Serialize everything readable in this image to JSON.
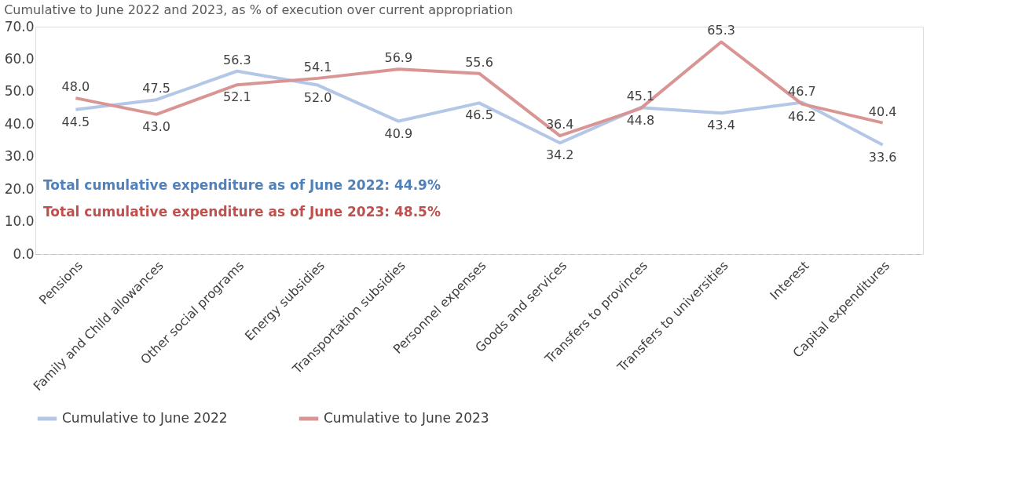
{
  "chart_data": {
    "type": "line",
    "title": "Cumulative to June 2022 and 2023, as % of execution over current appropriation",
    "categories": [
      "Pensions",
      "Family and Child allowances",
      "Other social programs",
      "Energy subsidies",
      "Transportation subsidies",
      "Personnel expenses",
      "Goods and services",
      "Transfers to provinces",
      "Transfers to universities",
      "Interest",
      "Capital expenditures"
    ],
    "series": [
      {
        "name": "Cumulative to June 2022",
        "color": "#b4c7e7",
        "values": [
          44.5,
          47.5,
          56.3,
          52.0,
          40.9,
          46.5,
          34.2,
          45.1,
          43.4,
          46.7,
          33.6
        ],
        "value_labels": [
          "44.5",
          "47.5",
          "56.3",
          "52.0",
          "40.9",
          "46.5",
          "34.2",
          "45.1",
          "43.4",
          "46.7",
          "33.6"
        ]
      },
      {
        "name": "Cumulative to June 2023",
        "color": "#d99594",
        "values": [
          48.0,
          43.0,
          52.1,
          54.1,
          56.9,
          55.6,
          36.4,
          44.8,
          65.3,
          46.2,
          40.4
        ],
        "value_labels": [
          "48.0",
          "43.0",
          "52.1",
          "54.1",
          "56.9",
          "55.6",
          "36.4",
          "44.8",
          "65.3",
          "46.2",
          "40.4"
        ]
      }
    ],
    "ylim": [
      0,
      70
    ],
    "yticks": [
      {
        "value": 0,
        "label": "0.0"
      },
      {
        "value": 10,
        "label": "10.0"
      },
      {
        "value": 20,
        "label": "20.0"
      },
      {
        "value": 30,
        "label": "30.0"
      },
      {
        "value": 40,
        "label": "40.0"
      },
      {
        "value": 50,
        "label": "50.0"
      },
      {
        "value": 60,
        "label": "60.0"
      },
      {
        "value": 70,
        "label": "70.0"
      }
    ],
    "annotations": [
      "Total cumulative expenditure as of June 2022: 44.9%",
      "Total cumulative expenditure as of June 2023: 48.5%"
    ],
    "grid": false,
    "legend": "bottom",
    "marker": "none",
    "line_style": "solid"
  }
}
